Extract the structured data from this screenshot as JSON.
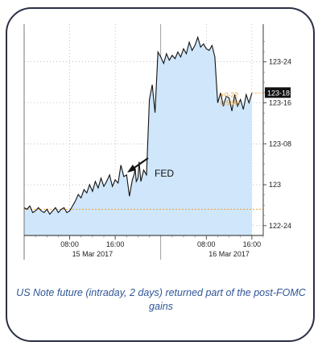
{
  "caption": "US Note future (intraday, 2 days) returned part of the post-FOMC gains",
  "colors": {
    "price_line": "#111111",
    "area_fill": "#cfe6fb",
    "reference_line": "#f0a030",
    "last_price_bg": "#111111",
    "change_text": "#f0a030",
    "frame": "#2a2f45",
    "caption_text": "#2f5597"
  },
  "chart_data": {
    "type": "area",
    "title": "",
    "xlabel": "",
    "ylabel": "",
    "y_tick_labels": [
      "122-24",
      "123",
      "123-08",
      "123-16",
      "123-24"
    ],
    "y_tick_values": [
      122.75,
      123.0,
      123.25,
      123.5,
      123.75
    ],
    "ylim": [
      122.69,
      123.98
    ],
    "x_tick_labels": [
      "08:00",
      "16:00",
      "08:00",
      "16:00"
    ],
    "x_tick_hours": [
      8,
      16,
      32,
      40
    ],
    "date_labels": [
      "15 Mar 2017",
      "16 Mar 2017"
    ],
    "xlim_hours": [
      0,
      42
    ],
    "reference_level": 122.85,
    "last_price_label": "123-18",
    "change_label": "+0-22",
    "change_pct_label": "0.56%",
    "annotation": "FED",
    "grid": true,
    "series": [
      {
        "x": [
          0,
          0.5,
          1,
          1.5,
          2,
          2.5,
          3,
          3.5,
          4,
          4.5,
          5,
          5.5,
          6,
          6.5,
          7,
          7.5,
          8,
          8.5,
          9,
          9.5,
          10,
          10.5,
          11,
          11.5,
          12,
          12.5,
          13,
          13.5,
          14,
          14.5,
          15,
          15.5,
          16,
          16.5,
          17,
          17.5,
          18,
          18.5,
          19,
          19.3,
          19.5,
          19.7,
          20,
          20.2,
          20.5,
          21,
          21.5,
          22,
          22.5,
          23,
          23.5,
          24,
          24.5,
          25,
          25.5,
          26,
          26.5,
          27,
          27.5,
          28,
          28.5,
          29,
          29.5,
          30,
          30.5,
          31,
          31.5,
          32,
          32.5,
          33,
          33.5,
          34,
          34.5,
          35,
          35.5,
          36,
          36.5,
          37,
          37.5,
          38,
          38.5,
          39,
          39.5,
          40
        ],
        "y": [
          122.86,
          122.85,
          122.87,
          122.83,
          122.84,
          122.86,
          122.84,
          122.83,
          122.85,
          122.82,
          122.84,
          122.86,
          122.83,
          122.85,
          122.86,
          122.83,
          122.84,
          122.87,
          122.9,
          122.94,
          122.92,
          122.97,
          122.95,
          123.0,
          122.96,
          123.02,
          122.98,
          123.04,
          122.99,
          123.02,
          123.06,
          122.99,
          123.03,
          123.01,
          123.12,
          123.05,
          123.06,
          122.93,
          123.03,
          123.06,
          123.1,
          123.02,
          123.04,
          123.14,
          123.02,
          123.09,
          123.06,
          123.52,
          123.61,
          123.44,
          123.81,
          123.78,
          123.74,
          123.8,
          123.76,
          123.79,
          123.77,
          123.81,
          123.78,
          123.83,
          123.8,
          123.87,
          123.82,
          123.85,
          123.9,
          123.84,
          123.86,
          123.83,
          123.82,
          123.85,
          123.78,
          123.5,
          123.56,
          123.48,
          123.54,
          123.53,
          123.45,
          123.55,
          123.48,
          123.52,
          123.46,
          123.55,
          123.5,
          123.56
        ]
      }
    ]
  }
}
